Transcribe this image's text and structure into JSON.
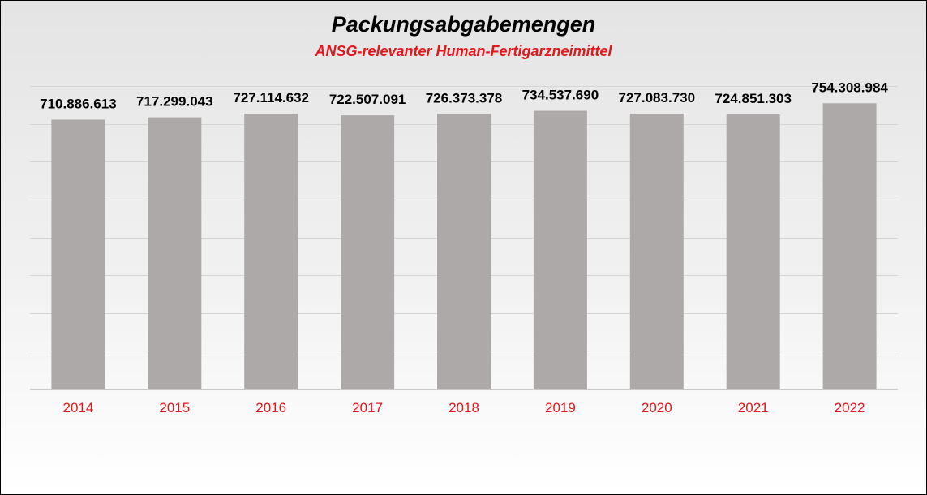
{
  "chart_data": {
    "type": "bar",
    "title": "Packungsabgabemengen",
    "subtitle": "ANSG-relevanter Human-Fertigarzneimittel",
    "categories": [
      "2014",
      "2015",
      "2016",
      "2017",
      "2018",
      "2019",
      "2020",
      "2021",
      "2022"
    ],
    "values": [
      710886613,
      717299043,
      727114632,
      722507091,
      726373378,
      734537690,
      727083730,
      724851303,
      754308984
    ],
    "value_labels": [
      "710.886.613",
      "717.299.043",
      "727.114.632",
      "722.507.091",
      "726.373.378",
      "734.537.690",
      "727.083.730",
      "724.851.303",
      "754.308.984"
    ],
    "ylim": [
      0,
      800000000
    ],
    "grid": true,
    "bar_color": "#ada9a8",
    "tick_color": "#e3161b",
    "subtitle_color": "#e3161b"
  }
}
